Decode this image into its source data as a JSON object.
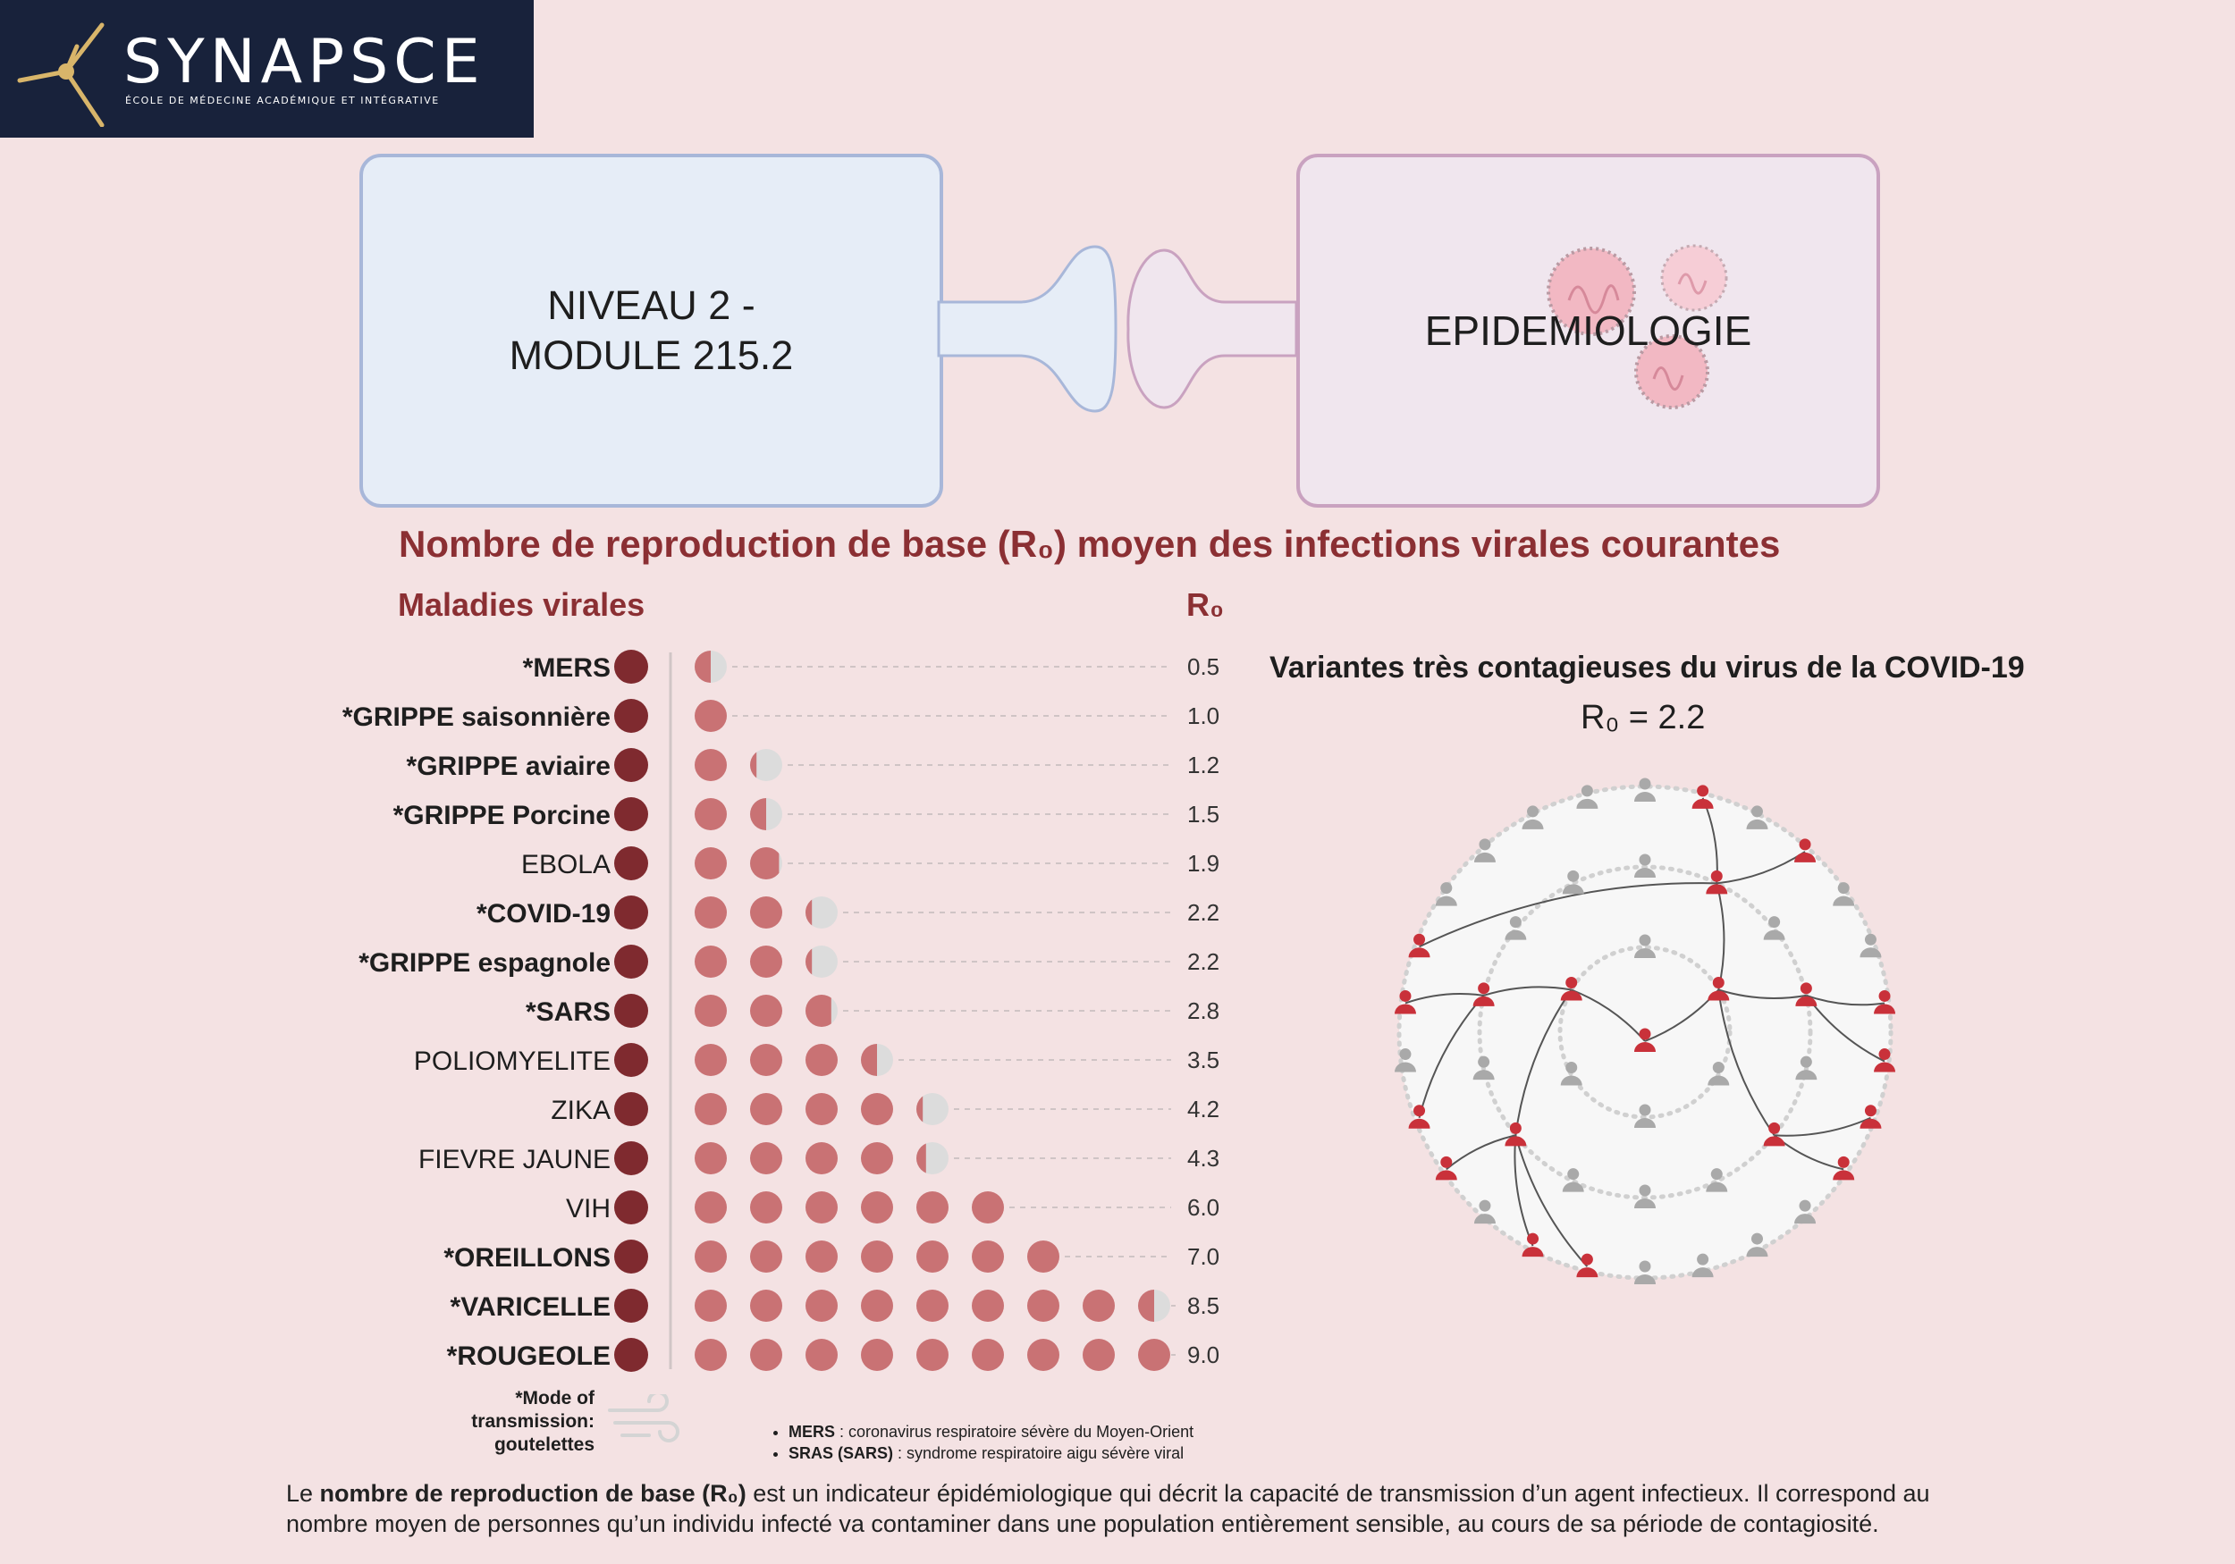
{
  "logo": {
    "name": "SYNAPSCE",
    "subtitle": "ÉCOLE DE MÉDECINE ACADÉMIQUE ET INTÉGRATIVE"
  },
  "header": {
    "left_box": [
      "NIVEAU 2 -",
      "MODULE 215.2"
    ],
    "right_box": "EPIDEMIOLOGIE"
  },
  "colors": {
    "dark_red": "#7f2a2f",
    "dot": "#c97274",
    "dot_empty": "#dcdcdc",
    "infected": "#c9313a",
    "healthy": "#a9a9a9"
  },
  "chart_data": {
    "type": "dot-plot",
    "title": "Nombre de reproduction de base (R₀) moyen des infections virales courantes",
    "category_header": "Maladies virales",
    "value_header": "R₀",
    "categories": [
      "*MERS",
      "*GRIPPE saisonnière",
      "*GRIPPE aviaire",
      "*GRIPPE Porcine",
      "EBOLA",
      "*COVID-19",
      "*GRIPPE espagnole",
      "*SARS",
      "POLIOMYELITE",
      "ZIKA",
      "FIEVRE JAUNE",
      "VIH",
      "*OREILLONS",
      "*VARICELLE",
      "*ROUGEOLE"
    ],
    "values": [
      0.5,
      1.0,
      1.2,
      1.5,
      1.9,
      2.2,
      2.2,
      2.8,
      3.5,
      4.2,
      4.3,
      6.0,
      7.0,
      8.5,
      9.0
    ],
    "value_labels": [
      "0.5",
      "1.0",
      "1.2",
      "1.5",
      "1.9",
      "2.2",
      "2.2",
      "2.8",
      "3.5",
      "4.2",
      "4.3",
      "6.0",
      "7.0",
      "8.5",
      "9.0"
    ],
    "droplet_transmission": [
      true,
      true,
      true,
      true,
      false,
      true,
      true,
      true,
      false,
      false,
      false,
      false,
      true,
      true,
      true
    ]
  },
  "covid": {
    "title": "Variantes très contagieuses du  virus de la COVID-19",
    "r0": "R₀ = 2.2"
  },
  "legend": {
    "mode": [
      "*Mode of",
      "transmission:",
      "goutelettes"
    ],
    "notes": [
      {
        "term": "MERS",
        "text": " : coronavirus respiratoire sévère du Moyen-Orient"
      },
      {
        "term": "SRAS (SARS)",
        "text": " : syndrome respiratoire aigu sévère viral"
      }
    ]
  },
  "footer": {
    "pre": "Le ",
    "bold": "nombre de reproduction de base (R₀)",
    "post": " est un indicateur épidémiologique qui décrit la capacité de transmission d’un agent infectieux. Il correspond au nombre moyen de personnes qu’un individu infecté va contaminer dans une population entièrement sensible, au cours de sa période de contagiosité."
  }
}
